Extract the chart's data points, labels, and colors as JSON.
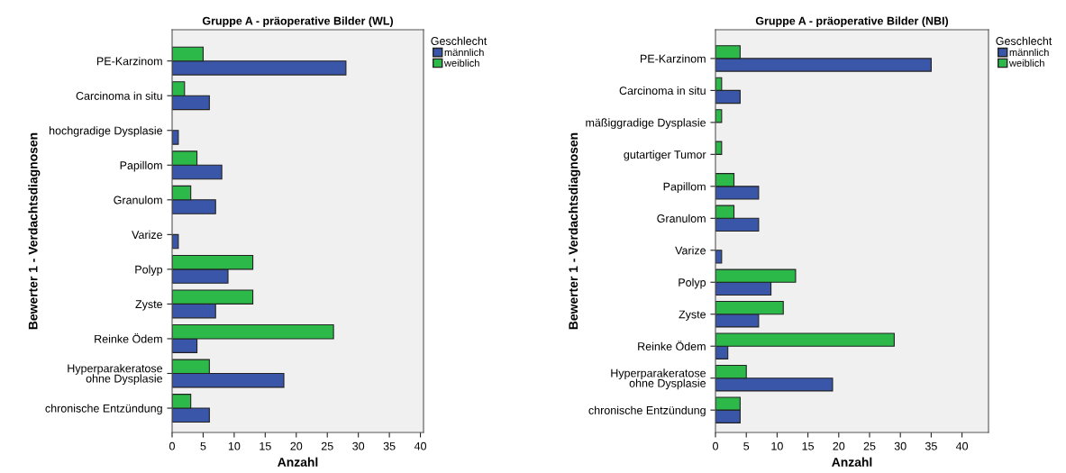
{
  "chart_data": [
    {
      "type": "bar",
      "orientation": "horizontal",
      "title": "Gruppe A - präoperative Bilder (WL)",
      "xlabel": "Anzahl",
      "ylabel": "Bewerter 1 - Verdachtsdiagnosen",
      "legend_title": "Geschlecht",
      "legend": "top right",
      "grid": false,
      "categories": [
        "PE-Karzinom",
        "Carcinoma in situ",
        "hochgradige Dysplasie",
        "Papillom",
        "Granulom",
        "Varize",
        "Polyp",
        "Zyste",
        "Reinke Ödem",
        "Hyperparakeratose\nohne Dysplasie",
        "chronische Entzündung"
      ],
      "series": [
        {
          "name": "männlich",
          "color": "#3a56a8",
          "values": [
            28,
            6,
            1,
            8,
            7,
            1,
            9,
            7,
            4,
            18,
            6
          ]
        },
        {
          "name": "weiblich",
          "color": "#2db84a",
          "values": [
            5,
            2,
            null,
            4,
            3,
            null,
            13,
            13,
            26,
            6,
            3
          ]
        }
      ],
      "xlim": [
        0,
        40.5
      ],
      "xticks": [
        0,
        5,
        10,
        15,
        20,
        25,
        30,
        35,
        40
      ]
    },
    {
      "type": "bar",
      "orientation": "horizontal",
      "title": "Gruppe A - präoperative Bilder (NBI)",
      "xlabel": "Anzahl",
      "ylabel": "Bewerter 1 - Verdachtsdiagnosen",
      "legend_title": "Geschlecht",
      "legend": "top right",
      "grid": false,
      "categories": [
        "PE-Karzinom",
        "Carcinoma in situ",
        "mäßiggradige Dysplasie",
        "gutartiger Tumor",
        "Papillom",
        "Granulom",
        "Varize",
        "Polyp",
        "Zyste",
        "Reinke Ödem",
        "Hyperparakeratose\nohne Dysplasie",
        "chronische Entzündung"
      ],
      "series": [
        {
          "name": "männlich",
          "color": "#3a56a8",
          "values": [
            35,
            4,
            null,
            null,
            7,
            7,
            1,
            9,
            7,
            2,
            19,
            4
          ]
        },
        {
          "name": "weiblich",
          "color": "#2db84a",
          "values": [
            4,
            1,
            1,
            1,
            3,
            3,
            null,
            13,
            11,
            29,
            5,
            4
          ]
        }
      ],
      "xlim": [
        0,
        44.3
      ],
      "xticks": [
        0,
        5,
        10,
        15,
        20,
        25,
        30,
        35,
        40
      ]
    }
  ]
}
